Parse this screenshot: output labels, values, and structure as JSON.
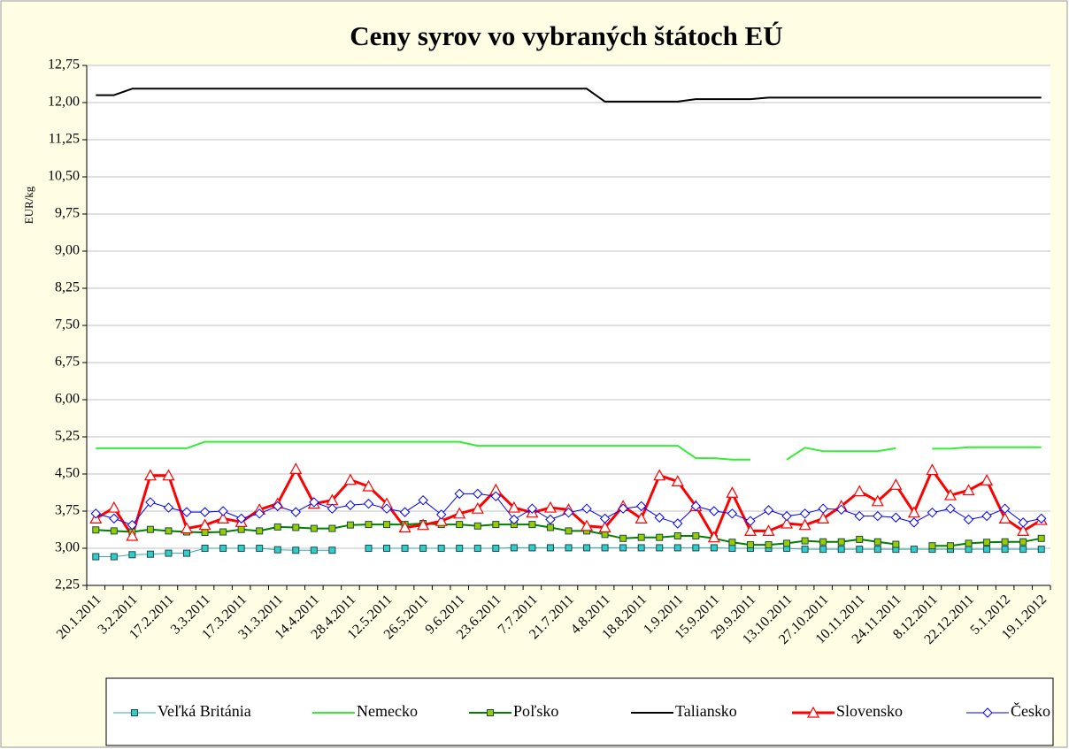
{
  "chart_data": {
    "type": "line",
    "title": "Ceny syrov vo vybraných štátoch EÚ",
    "y_label": "EUR/kg",
    "categories": [
      "20.1.2011",
      null,
      "3.2.2011",
      null,
      "17.2.2011",
      null,
      "3.3.2011",
      null,
      "17.3.2011",
      null,
      "31.3.2011",
      null,
      "14.4.2011",
      null,
      "28.4.2011",
      null,
      "12.5.2011",
      null,
      "26.5.2011",
      null,
      "9.6.2011",
      null,
      "23.6.2011",
      null,
      "7.7.2011",
      null,
      "21.7.2011",
      null,
      "4.8.2011",
      null,
      "18.8.2011",
      null,
      "1.9.2011",
      null,
      "15.9.2011",
      null,
      "29.9.2011",
      null,
      "13.10.2011",
      null,
      "27.10.2011",
      null,
      "10.11.2011",
      null,
      "24.11.2011",
      null,
      "8.12.2011",
      null,
      "22.12.2011",
      null,
      "5.1.2012",
      null,
      "19.1.2012"
    ],
    "ylim": [
      2.25,
      12.75
    ],
    "yticks": [
      {
        "value": 2.25,
        "label": "2,25"
      },
      {
        "value": 3,
        "label": "3,00"
      },
      {
        "value": 3.75,
        "label": "3,75"
      },
      {
        "value": 4.5,
        "label": "4,50"
      },
      {
        "value": 5.25,
        "label": "5,25"
      },
      {
        "value": 6,
        "label": "6,00"
      },
      {
        "value": 6.75,
        "label": "6,75"
      },
      {
        "value": 7.5,
        "label": "7,50"
      },
      {
        "value": 8.25,
        "label": "8,25"
      },
      {
        "value": 9,
        "label": "9,00"
      },
      {
        "value": 9.75,
        "label": "9,75"
      },
      {
        "value": 10.5,
        "label": "10,50"
      },
      {
        "value": 11.25,
        "label": "11,25"
      },
      {
        "value": 12,
        "label": "12,00"
      },
      {
        "value": 12.75,
        "label": "12,75"
      }
    ],
    "grid": true,
    "legend": "bottom",
    "series": [
      {
        "name": "Veľká Británia",
        "color": "#33aaaa",
        "marker": "square",
        "marker_fill": "#33cccc",
        "line_width": 1,
        "values": [
          2.83,
          2.83,
          2.87,
          2.88,
          2.9,
          2.9,
          3.0,
          3.0,
          3.0,
          3.0,
          2.97,
          2.96,
          2.96,
          2.96,
          null,
          3.0,
          3.0,
          3.0,
          3.0,
          3.0,
          3.0,
          3.0,
          3.0,
          3.01,
          3.01,
          3.01,
          3.01,
          3.01,
          3.01,
          3.01,
          3.01,
          3.01,
          3.01,
          3.01,
          3.01,
          3.0,
          3.0,
          3.0,
          3.0,
          2.98,
          2.98,
          2.98,
          2.98,
          2.98,
          2.98,
          2.98,
          2.98,
          2.98,
          2.98,
          2.98,
          2.98,
          2.98,
          2.98
        ]
      },
      {
        "name": "Nemecko",
        "color": "#33ee33",
        "marker": "none",
        "line_width": 2,
        "values": [
          5.02,
          5.02,
          5.02,
          5.02,
          5.02,
          5.02,
          5.15,
          5.15,
          5.15,
          5.15,
          5.15,
          5.15,
          5.15,
          5.15,
          5.15,
          5.15,
          5.15,
          5.15,
          5.15,
          5.15,
          5.15,
          5.07,
          5.07,
          5.07,
          5.07,
          5.07,
          5.07,
          5.07,
          5.07,
          5.07,
          5.07,
          5.07,
          5.07,
          4.82,
          4.82,
          4.79,
          4.79,
          null,
          4.79,
          5.03,
          4.96,
          4.96,
          4.96,
          4.96,
          5.02,
          null,
          5.01,
          5.01,
          5.04,
          5.04,
          5.04,
          5.04,
          5.04
        ]
      },
      {
        "name": "Poľsko",
        "color": "#008000",
        "marker": "square",
        "marker_fill": "#99cc00",
        "line_width": 2,
        "values": [
          3.37,
          3.35,
          3.33,
          3.38,
          3.35,
          3.33,
          3.32,
          3.33,
          3.38,
          3.35,
          3.43,
          3.42,
          3.4,
          3.4,
          3.47,
          3.48,
          3.48,
          3.48,
          3.5,
          3.48,
          3.48,
          3.45,
          3.48,
          3.48,
          3.48,
          3.42,
          3.35,
          3.35,
          3.28,
          3.2,
          3.22,
          3.22,
          3.25,
          3.25,
          3.2,
          3.12,
          3.07,
          3.07,
          3.1,
          3.15,
          3.13,
          3.13,
          3.18,
          3.13,
          3.08,
          null,
          3.05,
          3.05,
          3.1,
          3.12,
          3.13,
          3.13,
          3.2
        ]
      },
      {
        "name": "Taliansko",
        "color": "#000000",
        "marker": "none",
        "line_width": 2,
        "values": [
          12.15,
          12.15,
          12.28,
          12.28,
          12.28,
          12.28,
          12.28,
          12.28,
          12.28,
          12.28,
          12.28,
          12.28,
          12.28,
          12.28,
          12.28,
          12.28,
          12.28,
          12.28,
          12.28,
          12.28,
          12.28,
          12.28,
          12.28,
          12.28,
          12.28,
          12.28,
          12.28,
          12.28,
          12.02,
          12.02,
          12.02,
          12.02,
          12.02,
          12.07,
          12.07,
          12.07,
          12.07,
          12.1,
          12.1,
          12.1,
          12.1,
          12.1,
          12.1,
          12.1,
          12.1,
          12.1,
          12.1,
          12.1,
          12.1,
          12.1,
          12.1,
          12.1,
          12.1
        ]
      },
      {
        "name": "Slovensko",
        "color": "#ff0000",
        "marker": "triangle",
        "marker_fill": "#ffffff",
        "line_width": 3,
        "values": [
          3.6,
          3.82,
          3.25,
          4.47,
          4.47,
          3.4,
          3.47,
          3.6,
          3.53,
          3.78,
          3.9,
          4.6,
          3.9,
          3.97,
          4.38,
          4.25,
          3.9,
          3.42,
          3.47,
          3.55,
          3.7,
          3.8,
          4.18,
          3.82,
          3.72,
          3.82,
          3.78,
          3.45,
          3.42,
          3.85,
          3.6,
          4.47,
          4.35,
          3.85,
          3.22,
          4.12,
          3.35,
          3.35,
          3.5,
          3.47,
          3.6,
          3.85,
          4.15,
          3.95,
          4.28,
          3.72,
          4.58,
          4.07,
          4.17,
          4.37,
          3.6,
          3.35,
          3.57
        ]
      },
      {
        "name": "Česko",
        "color": "#0000ff",
        "marker": "diamond",
        "marker_fill": "#ffffff",
        "line_width": 1,
        "values": [
          3.7,
          3.6,
          3.47,
          3.93,
          3.82,
          3.73,
          3.73,
          3.75,
          3.6,
          3.7,
          3.85,
          3.73,
          3.93,
          3.8,
          3.87,
          3.9,
          3.8,
          3.73,
          3.97,
          3.68,
          4.1,
          4.1,
          4.05,
          3.58,
          3.8,
          3.58,
          3.72,
          3.8,
          3.6,
          3.8,
          3.85,
          3.62,
          3.5,
          3.85,
          3.75,
          3.7,
          3.55,
          3.77,
          3.65,
          3.7,
          3.8,
          3.78,
          3.65,
          3.65,
          3.62,
          3.52,
          3.72,
          3.8,
          3.58,
          3.65,
          3.8,
          3.52,
          3.6
        ]
      }
    ]
  }
}
